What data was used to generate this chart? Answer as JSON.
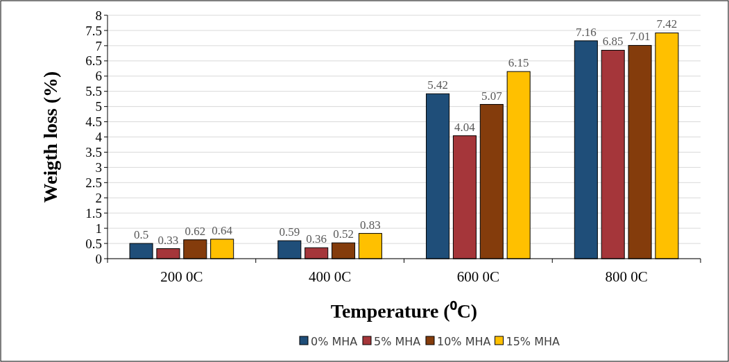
{
  "chart_data": {
    "type": "bar",
    "xlabel": "Temperature (⁰C)",
    "ylabel": "Weigth loss (%)",
    "categories": [
      "200 0C",
      "400 0C",
      "600 0C",
      "800 0C"
    ],
    "series": [
      {
        "name": "0% MHA",
        "color": "#1f4e79",
        "values": [
          0.5,
          0.59,
          5.42,
          7.16
        ]
      },
      {
        "name": "5% MHA",
        "color": "#a5363a",
        "values": [
          0.33,
          0.36,
          4.04,
          6.85
        ]
      },
      {
        "name": "10% MHA",
        "color": "#843c0c",
        "values": [
          0.62,
          0.52,
          5.07,
          7.01
        ]
      },
      {
        "name": "15% MHA",
        "color": "#ffc000",
        "values": [
          0.64,
          0.83,
          6.15,
          7.42
        ]
      }
    ],
    "ylim": [
      0,
      8
    ],
    "yticks": [
      0,
      0.5,
      1,
      1.5,
      2,
      2.5,
      3,
      3.5,
      4,
      4.5,
      5,
      5.5,
      6,
      6.5,
      7,
      7.5,
      8
    ],
    "grid": "y",
    "legend": "bottom",
    "data_labels": true
  }
}
